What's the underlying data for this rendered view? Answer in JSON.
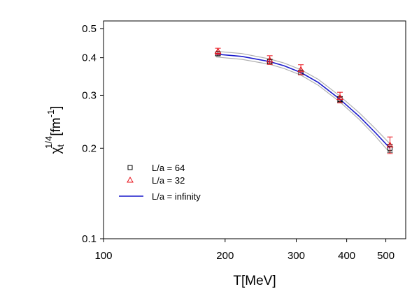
{
  "chart_data": {
    "type": "scatter",
    "x_scale": "log",
    "y_scale": "log",
    "xlim": [
      100,
      560
    ],
    "ylim": [
      0.1,
      0.53
    ],
    "xlabel": "T[MeV]",
    "ylabel": {
      "base": "χ",
      "subscript": "t",
      "superscript": "1/4",
      "unit_main": "[fm",
      "unit_sup": "-1",
      "unit_close": "]"
    },
    "x_ticks": [
      {
        "value": 100,
        "label": "100"
      },
      {
        "value": 200,
        "label": "200"
      },
      {
        "value": 300,
        "label": "300"
      },
      {
        "value": 400,
        "label": "400"
      },
      {
        "value": 500,
        "label": "500"
      }
    ],
    "y_ticks": [
      {
        "value": 0.1,
        "label": "0.1"
      },
      {
        "value": 0.2,
        "label": "0.2"
      },
      {
        "value": 0.3,
        "label": "0.3"
      },
      {
        "value": 0.4,
        "label": "0.4"
      },
      {
        "value": 0.5,
        "label": "0.5"
      }
    ],
    "series": [
      {
        "name": "L/a = 64",
        "marker": "square",
        "color": "#000000",
        "points": [
          {
            "x": 192,
            "y": 0.412,
            "err": 0.006
          },
          {
            "x": 258,
            "y": 0.388,
            "err": 0.007
          },
          {
            "x": 308,
            "y": 0.357,
            "err": 0.006
          },
          {
            "x": 385,
            "y": 0.291,
            "err": 0.006
          },
          {
            "x": 512,
            "y": 0.2,
            "err": 0.006
          }
        ]
      },
      {
        "name": "L/a = 32",
        "marker": "triangle",
        "color": "#e8141c",
        "points": [
          {
            "x": 192,
            "y": 0.42,
            "err": 0.01
          },
          {
            "x": 258,
            "y": 0.393,
            "err": 0.013
          },
          {
            "x": 308,
            "y": 0.365,
            "err": 0.014
          },
          {
            "x": 385,
            "y": 0.295,
            "err": 0.012
          },
          {
            "x": 512,
            "y": 0.205,
            "err": 0.013
          }
        ]
      },
      {
        "name": "L/a = infinity",
        "kind": "line",
        "color": "#1a1acc",
        "band_color": "#b0b0b0",
        "curve": [
          {
            "x": 190,
            "y": 0.411,
            "lo": 0.402,
            "hi": 0.42
          },
          {
            "x": 220,
            "y": 0.404,
            "lo": 0.395,
            "hi": 0.413
          },
          {
            "x": 258,
            "y": 0.388,
            "lo": 0.38,
            "hi": 0.396
          },
          {
            "x": 280,
            "y": 0.376,
            "lo": 0.368,
            "hi": 0.384
          },
          {
            "x": 308,
            "y": 0.357,
            "lo": 0.35,
            "hi": 0.365
          },
          {
            "x": 340,
            "y": 0.331,
            "lo": 0.324,
            "hi": 0.339
          },
          {
            "x": 385,
            "y": 0.291,
            "lo": 0.285,
            "hi": 0.298
          },
          {
            "x": 430,
            "y": 0.255,
            "lo": 0.249,
            "hi": 0.262
          },
          {
            "x": 470,
            "y": 0.226,
            "lo": 0.22,
            "hi": 0.233
          },
          {
            "x": 512,
            "y": 0.2,
            "lo": 0.193,
            "hi": 0.207
          }
        ]
      }
    ],
    "legend": {
      "placement": "lower-left",
      "entries": [
        "L/a = 64",
        "L/a = 32",
        "L/a = infinity"
      ]
    },
    "grid": false
  }
}
